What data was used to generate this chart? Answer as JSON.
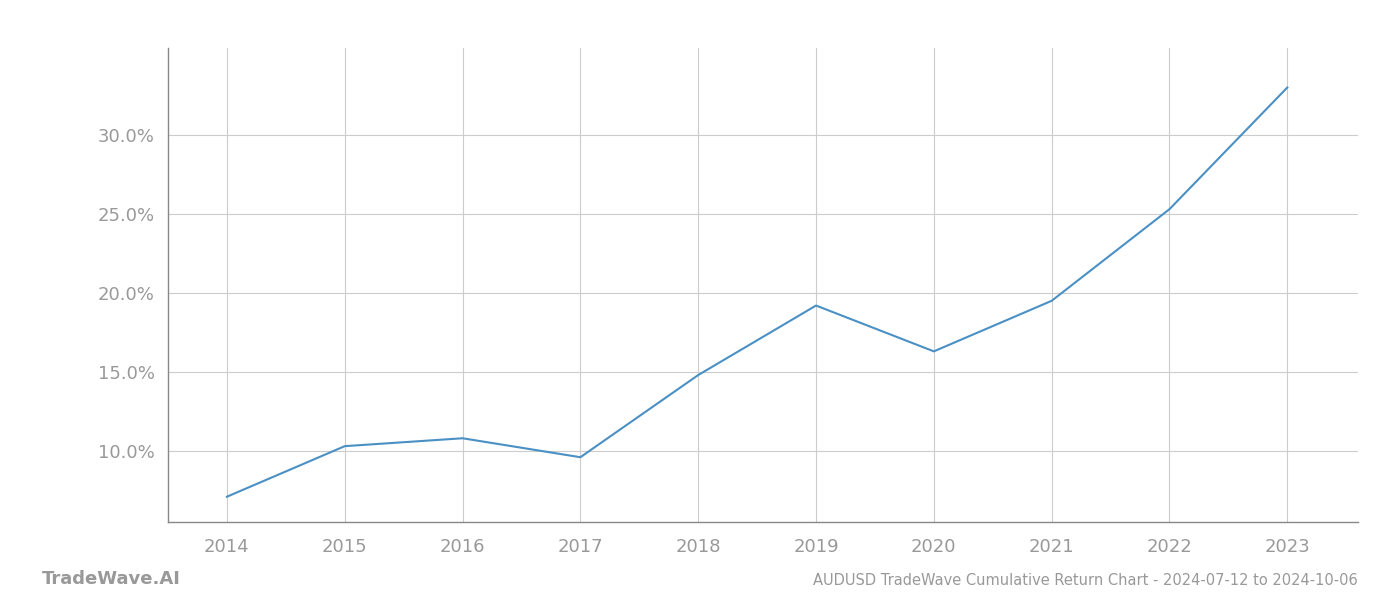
{
  "title": "AUDUSD TradeWave Cumulative Return Chart - 2024-07-12 to 2024-10-06",
  "footer_left": "TradeWave.AI",
  "line_color": "#4a90c4",
  "background_color": "#ffffff",
  "grid_color": "#cccccc",
  "x_values": [
    2014,
    2015,
    2016,
    2017,
    2018,
    2019,
    2020,
    2021,
    2022,
    2023
  ],
  "y_values": [
    0.071,
    0.103,
    0.108,
    0.096,
    0.148,
    0.192,
    0.163,
    0.195,
    0.253,
    0.33
  ],
  "ylim": [
    0.055,
    0.355
  ],
  "yticks": [
    0.1,
    0.15,
    0.2,
    0.25,
    0.3
  ],
  "xticks": [
    2014,
    2015,
    2016,
    2017,
    2018,
    2019,
    2020,
    2021,
    2022,
    2023
  ],
  "line_width": 1.5,
  "tick_label_color": "#999999",
  "title_fontsize": 10.5,
  "tick_fontsize": 13,
  "footer_fontsize": 13
}
